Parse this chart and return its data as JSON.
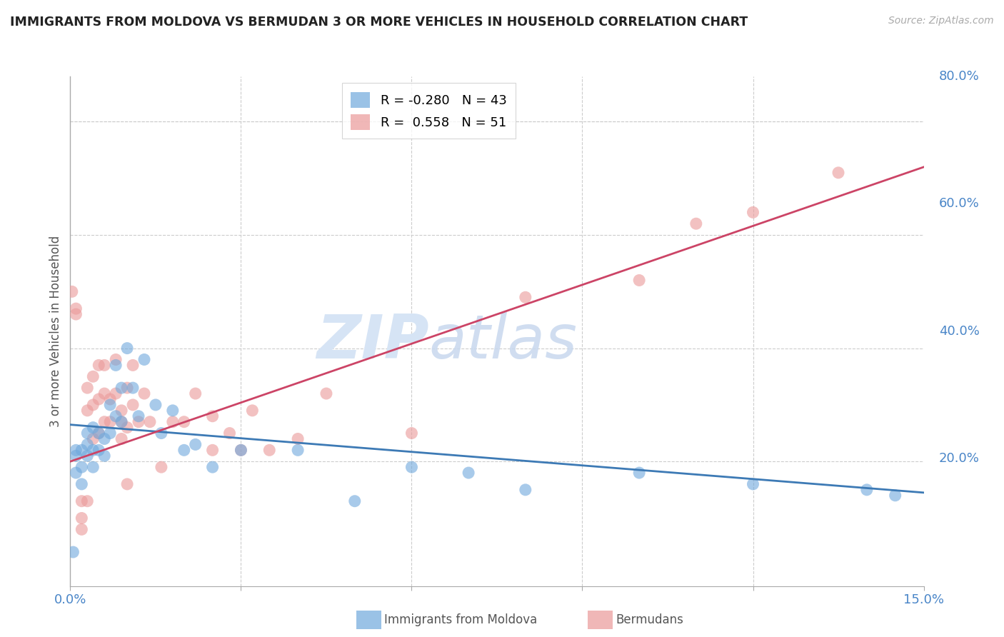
{
  "title": "IMMIGRANTS FROM MOLDOVA VS BERMUDAN 3 OR MORE VEHICLES IN HOUSEHOLD CORRELATION CHART",
  "source": "Source: ZipAtlas.com",
  "ylabel": "3 or more Vehicles in Household",
  "xlim": [
    0.0,
    0.15
  ],
  "ylim": [
    -0.02,
    0.88
  ],
  "blue_R": -0.28,
  "blue_N": 43,
  "pink_R": 0.558,
  "pink_N": 51,
  "blue_color": "#6fa8dc",
  "pink_color": "#ea9999",
  "blue_line_color": "#3d7ab5",
  "pink_line_color": "#cc4466",
  "watermark_zip": "ZIP",
  "watermark_atlas": "atlas",
  "watermark_color_zip": "#d6e4f5",
  "watermark_color_atlas": "#d6e4f5",
  "background_color": "#ffffff",
  "grid_color": "#cccccc",
  "blue_line_x0": 0.0,
  "blue_line_y0": 0.265,
  "blue_line_x1": 0.15,
  "blue_line_y1": 0.145,
  "pink_line_x0": 0.0,
  "pink_line_y0": 0.2,
  "pink_line_x1": 0.15,
  "pink_line_y1": 0.72,
  "blue_scatter_x": [
    0.0005,
    0.001,
    0.001,
    0.001,
    0.002,
    0.002,
    0.002,
    0.003,
    0.003,
    0.003,
    0.004,
    0.004,
    0.004,
    0.005,
    0.005,
    0.006,
    0.006,
    0.007,
    0.007,
    0.008,
    0.008,
    0.009,
    0.009,
    0.01,
    0.011,
    0.012,
    0.013,
    0.015,
    0.016,
    0.018,
    0.02,
    0.022,
    0.025,
    0.03,
    0.04,
    0.05,
    0.06,
    0.07,
    0.08,
    0.1,
    0.12,
    0.14,
    0.145
  ],
  "blue_scatter_y": [
    0.04,
    0.21,
    0.18,
    0.22,
    0.22,
    0.19,
    0.16,
    0.23,
    0.21,
    0.25,
    0.22,
    0.19,
    0.26,
    0.25,
    0.22,
    0.24,
    0.21,
    0.3,
    0.25,
    0.37,
    0.28,
    0.33,
    0.27,
    0.4,
    0.33,
    0.28,
    0.38,
    0.3,
    0.25,
    0.29,
    0.22,
    0.23,
    0.19,
    0.22,
    0.22,
    0.13,
    0.19,
    0.18,
    0.15,
    0.18,
    0.16,
    0.15,
    0.14
  ],
  "pink_scatter_x": [
    0.0003,
    0.001,
    0.001,
    0.002,
    0.002,
    0.002,
    0.003,
    0.003,
    0.003,
    0.004,
    0.004,
    0.004,
    0.005,
    0.005,
    0.005,
    0.006,
    0.006,
    0.006,
    0.007,
    0.007,
    0.008,
    0.008,
    0.009,
    0.009,
    0.009,
    0.01,
    0.01,
    0.011,
    0.011,
    0.012,
    0.013,
    0.014,
    0.016,
    0.018,
    0.02,
    0.022,
    0.025,
    0.025,
    0.028,
    0.03,
    0.032,
    0.035,
    0.04,
    0.045,
    0.06,
    0.08,
    0.1,
    0.11,
    0.12,
    0.135,
    0.01
  ],
  "pink_scatter_y": [
    0.5,
    0.46,
    0.47,
    0.08,
    0.13,
    0.1,
    0.33,
    0.29,
    0.13,
    0.35,
    0.3,
    0.24,
    0.37,
    0.31,
    0.25,
    0.37,
    0.32,
    0.27,
    0.31,
    0.27,
    0.38,
    0.32,
    0.29,
    0.27,
    0.24,
    0.33,
    0.26,
    0.37,
    0.3,
    0.27,
    0.32,
    0.27,
    0.19,
    0.27,
    0.27,
    0.32,
    0.22,
    0.28,
    0.25,
    0.22,
    0.29,
    0.22,
    0.24,
    0.32,
    0.25,
    0.49,
    0.52,
    0.62,
    0.64,
    0.71,
    0.16
  ]
}
